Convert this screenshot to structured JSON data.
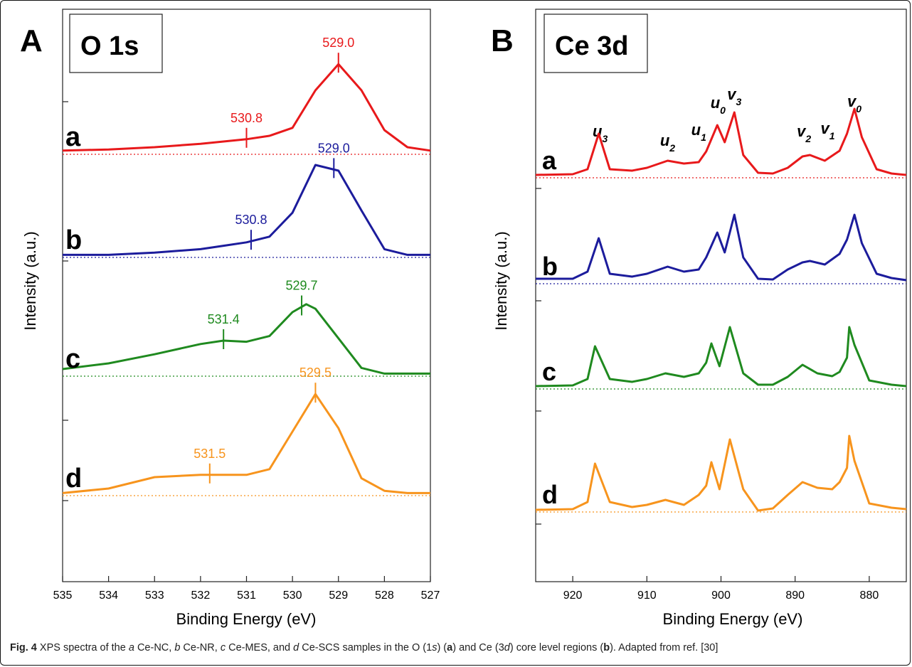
{
  "chart_data": [
    {
      "type": "line",
      "panel_label": "A",
      "title": "O 1s",
      "xlabel": "Binding Energy (eV)",
      "ylabel": "Intensity (a.u.)",
      "xlim": [
        535,
        527
      ],
      "x_reversed": true,
      "x_ticks": [
        "535",
        "534",
        "533",
        "532",
        "531",
        "530",
        "529",
        "528",
        "527"
      ],
      "series": [
        {
          "name": "a",
          "color": "#e8191b",
          "peaks": [
            {
              "label": "530.8",
              "x": 531.0
            },
            {
              "label": "529.0",
              "x": 529.0
            }
          ],
          "x": [
            535,
            534,
            533,
            532,
            531.5,
            531,
            530.5,
            530,
            529.5,
            529,
            528.5,
            528,
            527.5,
            527
          ],
          "y": [
            0.02,
            0.03,
            0.05,
            0.08,
            0.1,
            0.12,
            0.15,
            0.22,
            0.55,
            0.78,
            0.55,
            0.2,
            0.05,
            0.02
          ]
        },
        {
          "name": "b",
          "color": "#1c1c9c",
          "peaks": [
            {
              "label": "530.8",
              "x": 530.9
            },
            {
              "label": "529.0",
              "x": 529.1
            }
          ],
          "x": [
            535,
            534,
            533,
            532,
            531.5,
            531,
            530.5,
            530,
            529.5,
            529,
            528.5,
            528,
            527.5,
            527
          ],
          "y": [
            0.01,
            0.01,
            0.03,
            0.06,
            0.09,
            0.12,
            0.17,
            0.38,
            0.8,
            0.75,
            0.4,
            0.06,
            0.01,
            0.01
          ]
        },
        {
          "name": "c",
          "color": "#1f8a1f",
          "peaks": [
            {
              "label": "531.4",
              "x": 531.5
            },
            {
              "label": "529.7",
              "x": 529.8
            }
          ],
          "x": [
            535,
            534,
            533,
            532,
            531.5,
            531,
            530.5,
            530,
            529.7,
            529.5,
            529,
            528.5,
            528,
            527.5,
            527
          ],
          "y": [
            0.05,
            0.1,
            0.18,
            0.27,
            0.3,
            0.29,
            0.34,
            0.55,
            0.62,
            0.58,
            0.32,
            0.06,
            0.01,
            0.01,
            0.01
          ]
        },
        {
          "name": "d",
          "color": "#f7941d",
          "peaks": [
            {
              "label": "531.5",
              "x": 531.8
            },
            {
              "label": "529.5",
              "x": 529.5
            }
          ],
          "x": [
            535,
            534,
            533,
            532,
            531.5,
            531,
            530.5,
            530,
            529.5,
            529,
            528.5,
            528,
            527.5,
            527
          ],
          "y": [
            0.01,
            0.05,
            0.15,
            0.17,
            0.17,
            0.17,
            0.22,
            0.55,
            0.88,
            0.58,
            0.14,
            0.03,
            0.01,
            0.01
          ]
        }
      ]
    },
    {
      "type": "line",
      "panel_label": "B",
      "title": "Ce 3d",
      "xlabel": "Binding Energy (eV)",
      "ylabel": "Intensity (a.u.)",
      "xlim": [
        925,
        875
      ],
      "x_reversed": true,
      "x_ticks": [
        "920",
        "910",
        "900",
        "890",
        "880"
      ],
      "peak_labels": [
        {
          "main": "u",
          "sub": "3",
          "x": 916.3
        },
        {
          "main": "u",
          "sub": "2",
          "x": 907.2
        },
        {
          "main": "u",
          "sub": "1",
          "x": 903.0
        },
        {
          "main": "u",
          "sub": "0",
          "x": 900.4
        },
        {
          "main": "v",
          "sub": "3",
          "x": 898.2
        },
        {
          "main": "v",
          "sub": "2",
          "x": 888.8
        },
        {
          "main": "v",
          "sub": "1",
          "x": 885.6
        },
        {
          "main": "v",
          "sub": "0",
          "x": 882.0
        }
      ],
      "series": [
        {
          "name": "a",
          "color": "#e8191b",
          "x": [
            925,
            920,
            918,
            916.5,
            915,
            912,
            910,
            907.2,
            905,
            903,
            902,
            900.5,
            899.5,
            898.2,
            897,
            895,
            893,
            891,
            889,
            888,
            886,
            884,
            883,
            882,
            881,
            879,
            877,
            875
          ],
          "y": [
            0.02,
            0.03,
            0.1,
            0.6,
            0.1,
            0.08,
            0.12,
            0.22,
            0.18,
            0.2,
            0.35,
            0.72,
            0.48,
            0.9,
            0.3,
            0.05,
            0.04,
            0.12,
            0.28,
            0.3,
            0.22,
            0.36,
            0.6,
            0.95,
            0.55,
            0.1,
            0.04,
            0.02
          ]
        },
        {
          "name": "b",
          "color": "#1c1c9c",
          "x": [
            925,
            920,
            918,
            916.5,
            915,
            912,
            910,
            907.2,
            905,
            903,
            902,
            900.5,
            899.5,
            898.2,
            897,
            895,
            893,
            891,
            889,
            888,
            886,
            884,
            883,
            882,
            881,
            879,
            877,
            875
          ],
          "y": [
            0.05,
            0.05,
            0.15,
            0.62,
            0.12,
            0.08,
            0.12,
            0.22,
            0.15,
            0.18,
            0.35,
            0.7,
            0.42,
            0.95,
            0.35,
            0.05,
            0.04,
            0.18,
            0.28,
            0.3,
            0.25,
            0.4,
            0.6,
            0.95,
            0.55,
            0.12,
            0.06,
            0.03
          ]
        },
        {
          "name": "c",
          "color": "#1f8a1f",
          "x": [
            925,
            920,
            918,
            917,
            915,
            912,
            910,
            907.5,
            905,
            903,
            902,
            901.3,
            900.2,
            898.8,
            897,
            895,
            893,
            891,
            889,
            887,
            885,
            884,
            883,
            882.7,
            882,
            880,
            877,
            875
          ],
          "y": [
            0.02,
            0.03,
            0.12,
            0.58,
            0.12,
            0.08,
            0.12,
            0.2,
            0.15,
            0.2,
            0.35,
            0.62,
            0.3,
            0.85,
            0.2,
            0.04,
            0.04,
            0.15,
            0.32,
            0.2,
            0.16,
            0.22,
            0.42,
            0.85,
            0.6,
            0.1,
            0.04,
            0.02
          ]
        },
        {
          "name": "d",
          "color": "#f7941d",
          "x": [
            925,
            920,
            918,
            917,
            915,
            912,
            910,
            907.5,
            905,
            903,
            902,
            901.3,
            900.2,
            898.8,
            897,
            895,
            893,
            891,
            889,
            887,
            885,
            884,
            883,
            882.7,
            882,
            880,
            877,
            875
          ],
          "y": [
            0.01,
            0.02,
            0.12,
            0.66,
            0.12,
            0.05,
            0.08,
            0.15,
            0.08,
            0.22,
            0.35,
            0.68,
            0.3,
            1.0,
            0.3,
            0.0,
            0.03,
            0.22,
            0.4,
            0.32,
            0.3,
            0.4,
            0.6,
            1.05,
            0.7,
            0.1,
            0.04,
            0.02
          ]
        }
      ]
    }
  ],
  "caption": {
    "fig": "Fig. 4",
    "pre": " XPS spectra of the ",
    "a": "a",
    "a_name": " Ce-NC, ",
    "b": "b",
    "b_name": " Ce-NR, ",
    "c": "c",
    "c_name": " Ce-MES, and ",
    "d": "d",
    "d_name": " Ce-SCS samples in the O (1",
    "s": "s",
    "mid1": ") (",
    "bold_a": "a",
    "mid2": ") and Ce (3",
    "dd": "d",
    "mid3": ") core level regions (",
    "bold_b": "b",
    "post": "). Adapted from ref. [30]"
  }
}
